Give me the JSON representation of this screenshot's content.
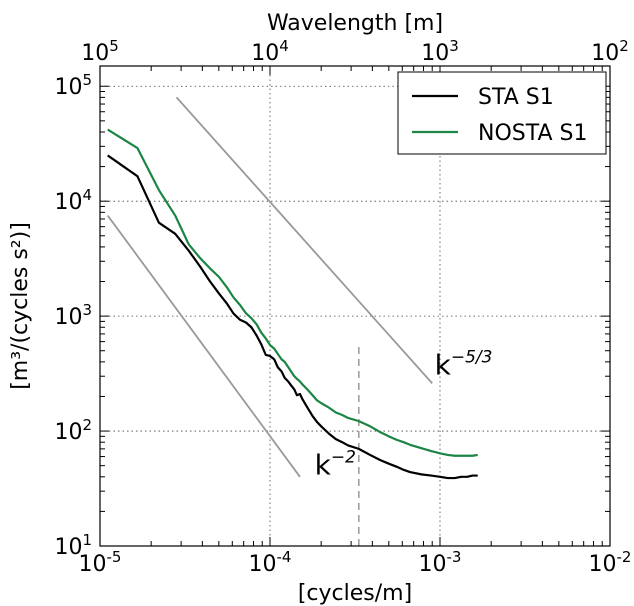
{
  "chart_data": {
    "type": "line",
    "xscale": "log",
    "yscale": "log",
    "xlim": [
      1e-05,
      0.01
    ],
    "ylim": [
      10,
      150000
    ],
    "xlabel": "[cycles/m]",
    "ylabel": "[m³/(cycles s²)]",
    "top_axis_label": "Wavelength [m]",
    "x_ticks": [
      {
        "value": 1e-05,
        "base": "10",
        "exp": "-5"
      },
      {
        "value": 0.0001,
        "base": "10",
        "exp": "-4"
      },
      {
        "value": 0.001,
        "base": "10",
        "exp": "-3"
      },
      {
        "value": 0.01,
        "base": "10",
        "exp": "-2"
      }
    ],
    "y_ticks": [
      {
        "value": 10,
        "base": "10",
        "exp": "1"
      },
      {
        "value": 100,
        "base": "10",
        "exp": "2"
      },
      {
        "value": 1000,
        "base": "10",
        "exp": "3"
      },
      {
        "value": 10000,
        "base": "10",
        "exp": "4"
      },
      {
        "value": 100000,
        "base": "10",
        "exp": "5"
      }
    ],
    "top_ticks": [
      {
        "value": 1e-05,
        "base": "10",
        "exp": "5"
      },
      {
        "value": 0.0001,
        "base": "10",
        "exp": "4"
      },
      {
        "value": 0.001,
        "base": "10",
        "exp": "3"
      },
      {
        "value": 0.01,
        "base": "10",
        "exp": "2"
      }
    ],
    "grid": true,
    "grid_lines_x": [
      0.0001,
      0.001
    ],
    "grid_lines_y": [
      100,
      1000,
      10000,
      100000
    ],
    "legend_position": "top-right",
    "series": [
      {
        "name": "STA S1",
        "color": "#000000",
        "points": [
          [
            1.11e-05,
            25000
          ],
          [
            1.66e-05,
            16500
          ],
          [
            2.22e-05,
            6500
          ],
          [
            2.77e-05,
            5200
          ],
          [
            3.33e-05,
            3700
          ],
          [
            3.88e-05,
            2700
          ],
          [
            4.44e-05,
            2000
          ],
          [
            5e-05,
            1580
          ],
          [
            5.55e-05,
            1300
          ],
          [
            6.11e-05,
            1050
          ],
          [
            6.66e-05,
            930
          ],
          [
            7.22e-05,
            880
          ],
          [
            7.77e-05,
            800
          ],
          [
            8.33e-05,
            680
          ],
          [
            8.88e-05,
            570
          ],
          [
            9.44e-05,
            460
          ],
          [
            0.0001,
            450
          ],
          [
            0.000106,
            420
          ],
          [
            0.000111,
            360
          ],
          [
            0.000117,
            330
          ],
          [
            0.000122,
            290
          ],
          [
            0.000128,
            270
          ],
          [
            0.000133,
            250
          ],
          [
            0.000139,
            230
          ],
          [
            0.000144,
            205
          ],
          [
            0.00015,
            210
          ],
          [
            0.000155,
            190
          ],
          [
            0.000166,
            160
          ],
          [
            0.000178,
            135
          ],
          [
            0.000189,
            120
          ],
          [
            0.0002,
            110
          ],
          [
            0.000222,
            95
          ],
          [
            0.000244,
            85
          ],
          [
            0.000266,
            80
          ],
          [
            0.000288,
            75
          ],
          [
            0.000333,
            70
          ],
          [
            0.000388,
            62
          ],
          [
            0.000444,
            56
          ],
          [
            0.0005,
            52
          ],
          [
            0.000555,
            49
          ],
          [
            0.000611,
            46
          ],
          [
            0.000666,
            44
          ],
          [
            0.000777,
            42
          ],
          [
            0.000888,
            41
          ],
          [
            0.001,
            40
          ],
          [
            0.001111,
            39
          ],
          [
            0.001222,
            39
          ],
          [
            0.001333,
            40
          ],
          [
            0.001444,
            40
          ],
          [
            0.001555,
            41
          ],
          [
            0.001666,
            41
          ]
        ]
      },
      {
        "name": "NOSTA S1",
        "color": "#1b8544",
        "points": [
          [
            1.11e-05,
            42000
          ],
          [
            1.66e-05,
            29000
          ],
          [
            2.22e-05,
            12500
          ],
          [
            2.77e-05,
            7500
          ],
          [
            3.33e-05,
            4200
          ],
          [
            3.88e-05,
            3200
          ],
          [
            4.44e-05,
            2600
          ],
          [
            5e-05,
            2200
          ],
          [
            5.55e-05,
            1800
          ],
          [
            6.11e-05,
            1450
          ],
          [
            6.66e-05,
            1250
          ],
          [
            7.22e-05,
            1060
          ],
          [
            7.77e-05,
            960
          ],
          [
            8.33e-05,
            850
          ],
          [
            8.88e-05,
            720
          ],
          [
            9.44e-05,
            640
          ],
          [
            0.0001,
            560
          ],
          [
            0.000106,
            520
          ],
          [
            0.000111,
            470
          ],
          [
            0.000117,
            420
          ],
          [
            0.000122,
            400
          ],
          [
            0.000128,
            360
          ],
          [
            0.000133,
            330
          ],
          [
            0.000139,
            300
          ],
          [
            0.000144,
            285
          ],
          [
            0.00015,
            270
          ],
          [
            0.000155,
            255
          ],
          [
            0.000166,
            230
          ],
          [
            0.000178,
            205
          ],
          [
            0.000189,
            185
          ],
          [
            0.0002,
            175
          ],
          [
            0.000222,
            160
          ],
          [
            0.000244,
            145
          ],
          [
            0.000266,
            138
          ],
          [
            0.000288,
            130
          ],
          [
            0.000333,
            122
          ],
          [
            0.000388,
            110
          ],
          [
            0.000444,
            98
          ],
          [
            0.0005,
            90
          ],
          [
            0.000555,
            84
          ],
          [
            0.000611,
            80
          ],
          [
            0.000666,
            76
          ],
          [
            0.000777,
            71
          ],
          [
            0.000888,
            67
          ],
          [
            0.001,
            64
          ],
          [
            0.001111,
            62
          ],
          [
            0.001222,
            61
          ],
          [
            0.001333,
            61
          ],
          [
            0.001444,
            61
          ],
          [
            0.001555,
            61
          ],
          [
            0.001666,
            62
          ]
        ]
      }
    ],
    "reference_lines": [
      {
        "label_base": "k",
        "label_exp": "−5/3",
        "color": "#999999",
        "x": [
          2.82e-05,
          0.0009
        ],
        "y": [
          80000,
          260
        ],
        "label_x": 0.00093,
        "label_y": 310
      },
      {
        "label_base": "k",
        "label_exp": "−2",
        "color": "#999999",
        "x": [
          1.11e-05,
          0.00015
        ],
        "y": [
          7500,
          40
        ],
        "label_x": 0.000183,
        "label_y": 42
      }
    ],
    "vertical_marker": {
      "x": 0.000333,
      "y": [
        10,
        550
      ],
      "color": "#999999",
      "style": "dashed"
    }
  }
}
